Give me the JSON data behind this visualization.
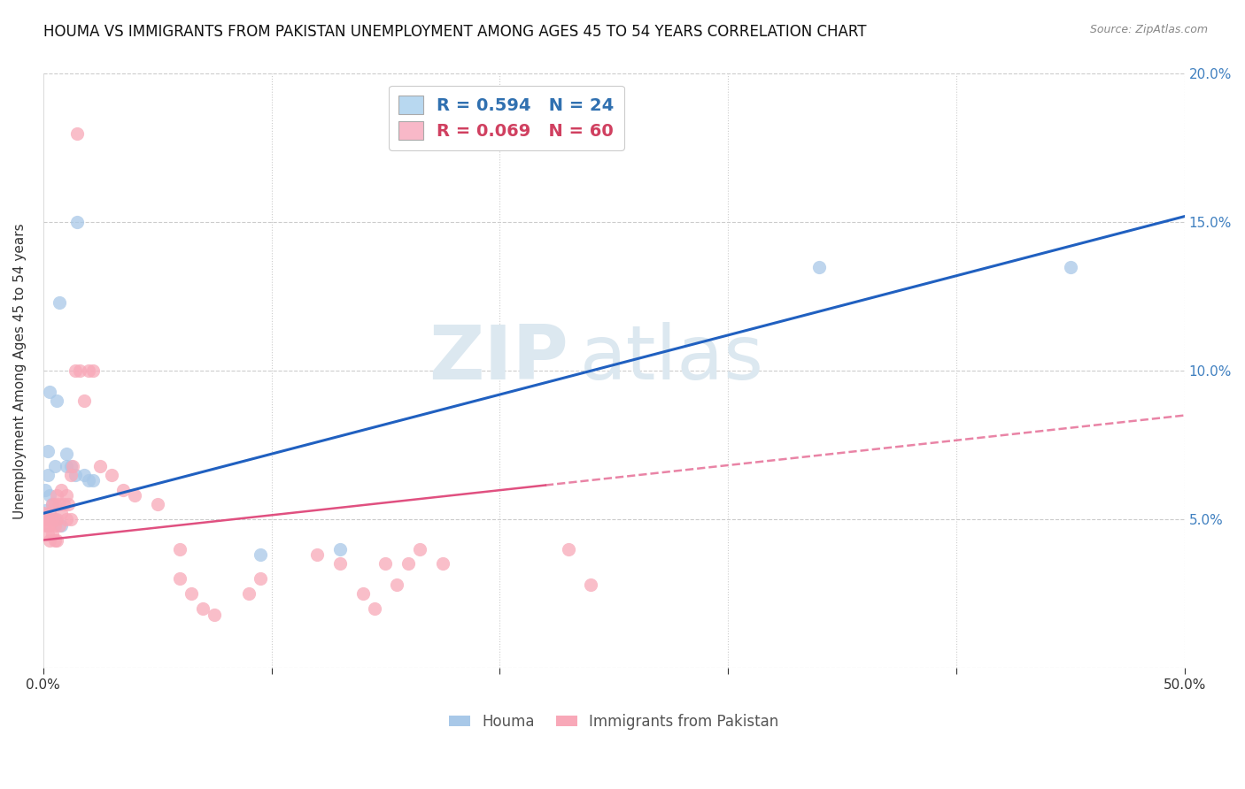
{
  "title": "HOUMA VS IMMIGRANTS FROM PAKISTAN UNEMPLOYMENT AMONG AGES 45 TO 54 YEARS CORRELATION CHART",
  "source": "Source: ZipAtlas.com",
  "ylabel": "Unemployment Among Ages 45 to 54 years",
  "xlim": [
    0.0,
    0.5
  ],
  "ylim": [
    0.0,
    0.2
  ],
  "xticks": [
    0.0,
    0.1,
    0.2,
    0.3,
    0.4,
    0.5
  ],
  "yticks": [
    0.0,
    0.05,
    0.1,
    0.15,
    0.2
  ],
  "ytick_labels_right": [
    "",
    "5.0%",
    "10.0%",
    "15.0%",
    "20.0%"
  ],
  "watermark_line1": "ZIP",
  "watermark_line2": "atlas",
  "houma_color": "#a8c8e8",
  "pakistan_color": "#f8a8b8",
  "houma_line_color": "#2060c0",
  "pakistan_line_color": "#e05080",
  "houma_scatter": [
    [
      0.003,
      0.093
    ],
    [
      0.007,
      0.123
    ],
    [
      0.015,
      0.15
    ],
    [
      0.006,
      0.09
    ],
    [
      0.002,
      0.073
    ],
    [
      0.005,
      0.068
    ],
    [
      0.01,
      0.068
    ],
    [
      0.01,
      0.072
    ],
    [
      0.012,
      0.068
    ],
    [
      0.014,
      0.065
    ],
    [
      0.018,
      0.065
    ],
    [
      0.02,
      0.063
    ],
    [
      0.022,
      0.063
    ],
    [
      0.002,
      0.065
    ],
    [
      0.001,
      0.06
    ],
    [
      0.003,
      0.058
    ],
    [
      0.004,
      0.055
    ],
    [
      0.001,
      0.053
    ],
    [
      0.005,
      0.05
    ],
    [
      0.008,
      0.048
    ],
    [
      0.34,
      0.135
    ],
    [
      0.45,
      0.135
    ],
    [
      0.095,
      0.038
    ],
    [
      0.13,
      0.04
    ]
  ],
  "pakistan_scatter": [
    [
      0.0,
      0.052
    ],
    [
      0.001,
      0.05
    ],
    [
      0.001,
      0.048
    ],
    [
      0.002,
      0.05
    ],
    [
      0.002,
      0.048
    ],
    [
      0.002,
      0.045
    ],
    [
      0.003,
      0.052
    ],
    [
      0.003,
      0.048
    ],
    [
      0.003,
      0.043
    ],
    [
      0.004,
      0.055
    ],
    [
      0.004,
      0.05
    ],
    [
      0.004,
      0.045
    ],
    [
      0.005,
      0.055
    ],
    [
      0.005,
      0.048
    ],
    [
      0.005,
      0.043
    ],
    [
      0.006,
      0.058
    ],
    [
      0.006,
      0.05
    ],
    [
      0.006,
      0.043
    ],
    [
      0.007,
      0.055
    ],
    [
      0.007,
      0.048
    ],
    [
      0.008,
      0.06
    ],
    [
      0.008,
      0.052
    ],
    [
      0.009,
      0.055
    ],
    [
      0.01,
      0.058
    ],
    [
      0.01,
      0.05
    ],
    [
      0.011,
      0.055
    ],
    [
      0.012,
      0.065
    ],
    [
      0.012,
      0.05
    ],
    [
      0.013,
      0.068
    ],
    [
      0.014,
      0.1
    ],
    [
      0.016,
      0.1
    ],
    [
      0.018,
      0.09
    ],
    [
      0.02,
      0.1
    ],
    [
      0.022,
      0.1
    ],
    [
      0.015,
      0.18
    ],
    [
      0.025,
      0.068
    ],
    [
      0.03,
      0.065
    ],
    [
      0.035,
      0.06
    ],
    [
      0.04,
      0.058
    ],
    [
      0.05,
      0.055
    ],
    [
      0.06,
      0.04
    ],
    [
      0.06,
      0.03
    ],
    [
      0.065,
      0.025
    ],
    [
      0.07,
      0.02
    ],
    [
      0.075,
      0.018
    ],
    [
      0.09,
      0.025
    ],
    [
      0.095,
      0.03
    ],
    [
      0.13,
      0.035
    ],
    [
      0.14,
      0.025
    ],
    [
      0.145,
      0.02
    ],
    [
      0.15,
      0.035
    ],
    [
      0.155,
      0.028
    ],
    [
      0.16,
      0.035
    ],
    [
      0.165,
      0.04
    ],
    [
      0.175,
      0.035
    ],
    [
      0.12,
      0.038
    ],
    [
      0.23,
      0.04
    ],
    [
      0.24,
      0.028
    ]
  ],
  "houma_line": {
    "x0": 0.0,
    "y0": 0.052,
    "x1": 0.5,
    "y1": 0.152
  },
  "pakistan_line": {
    "x0": 0.0,
    "y0": 0.043,
    "x1": 0.5,
    "y1": 0.085
  },
  "background_color": "#ffffff",
  "grid_color": "#cccccc",
  "title_fontsize": 12,
  "axis_fontsize": 11,
  "tick_fontsize": 11
}
